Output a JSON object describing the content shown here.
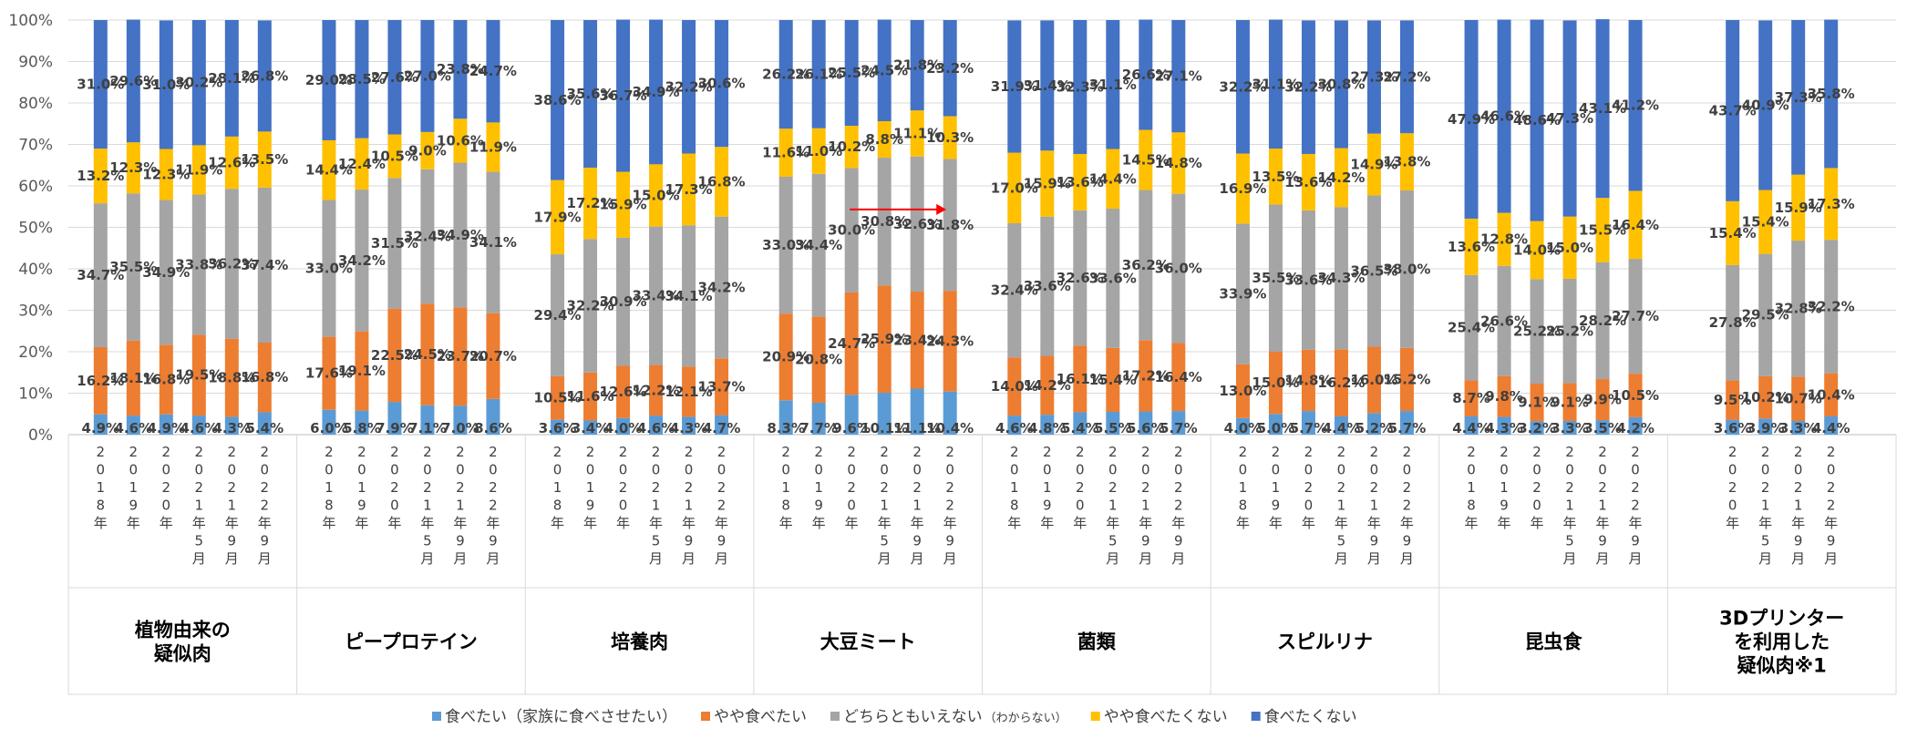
{
  "chart_data": {
    "type": "bar",
    "stacked": true,
    "percent": true,
    "ylim": [
      0,
      100
    ],
    "yticks": [
      "0%",
      "10%",
      "20%",
      "30%",
      "40%",
      "50%",
      "60%",
      "70%",
      "80%",
      "90%",
      "100%"
    ],
    "series": [
      {
        "name": "食べたい（家族に食べさせたい）",
        "color": "#5B9BD5"
      },
      {
        "name": "やや食べたい",
        "color": "#ED7D31"
      },
      {
        "name": "どちらともいえない",
        "name_suffix": "（わからない）",
        "color": "#A5A5A5"
      },
      {
        "name": "やや食べたくない",
        "color": "#FFC000"
      },
      {
        "name": "食べたくない",
        "color": "#4472C4"
      }
    ],
    "groups": [
      {
        "label_lines": [
          "植物由来の",
          "疑似肉"
        ],
        "x": [
          "2018年",
          "2019年",
          "2020年",
          "2021年5月",
          "2021年9月",
          "2022年9月"
        ],
        "values": [
          [
            4.9,
            16.2,
            34.7,
            13.2,
            31.0
          ],
          [
            4.6,
            18.1,
            35.5,
            12.3,
            29.6
          ],
          [
            4.9,
            16.8,
            34.9,
            12.3,
            31.0
          ],
          [
            4.6,
            19.5,
            33.8,
            11.9,
            30.2
          ],
          [
            4.3,
            18.8,
            36.2,
            12.6,
            28.1
          ],
          [
            5.4,
            16.8,
            37.4,
            13.5,
            26.8
          ]
        ]
      },
      {
        "label_lines": [
          "ピープロテイン"
        ],
        "x": [
          "2018年",
          "2019年",
          "2020年",
          "2021年5月",
          "2021年9月",
          "2022年9月"
        ],
        "values": [
          [
            6.0,
            17.6,
            33.0,
            14.4,
            29.0
          ],
          [
            5.8,
            19.1,
            34.2,
            12.4,
            28.5
          ],
          [
            7.9,
            22.5,
            31.5,
            10.5,
            27.6
          ],
          [
            7.1,
            24.5,
            32.4,
            9.0,
            27.0
          ],
          [
            7.0,
            23.7,
            34.9,
            10.6,
            23.8
          ],
          [
            8.6,
            20.7,
            34.1,
            11.9,
            24.7
          ]
        ]
      },
      {
        "label_lines": [
          "培養肉"
        ],
        "x": [
          "2018年",
          "2019年",
          "2020年",
          "2021年5月",
          "2021年9月",
          "2022年9月"
        ],
        "values": [
          [
            3.6,
            10.5,
            29.4,
            17.9,
            38.6
          ],
          [
            3.4,
            11.6,
            32.2,
            17.2,
            35.6
          ],
          [
            4.0,
            12.6,
            30.9,
            15.9,
            36.7
          ],
          [
            4.6,
            12.2,
            33.4,
            15.0,
            34.9
          ],
          [
            4.3,
            12.1,
            34.1,
            17.3,
            32.2
          ],
          [
            4.7,
            13.7,
            34.2,
            16.8,
            30.6
          ]
        ]
      },
      {
        "label_lines": [
          "大豆ミート"
        ],
        "x": [
          "2018年",
          "2019年",
          "2020年",
          "2021年5月",
          "2021年9月",
          "2022年9月"
        ],
        "values": [
          [
            8.3,
            20.9,
            33.0,
            11.6,
            26.2
          ],
          [
            7.7,
            20.8,
            34.4,
            11.0,
            26.1
          ],
          [
            9.6,
            24.7,
            30.0,
            10.2,
            25.5
          ],
          [
            10.1,
            25.9,
            30.8,
            8.8,
            24.5
          ],
          [
            11.1,
            23.4,
            32.6,
            11.1,
            21.8
          ],
          [
            10.4,
            24.3,
            31.8,
            10.3,
            23.2
          ]
        ],
        "annotation": "arrow"
      },
      {
        "label_lines": [
          "菌類"
        ],
        "x": [
          "2018年",
          "2019年",
          "2020年",
          "2021年5月",
          "2021年9月",
          "2022年9月"
        ],
        "values": [
          [
            4.6,
            14.0,
            32.4,
            17.0,
            31.9
          ],
          [
            4.8,
            14.2,
            33.6,
            15.9,
            31.4
          ],
          [
            5.4,
            16.1,
            32.6,
            13.6,
            32.3
          ],
          [
            5.5,
            15.4,
            33.6,
            14.4,
            31.1
          ],
          [
            5.6,
            17.2,
            36.2,
            14.5,
            26.6
          ],
          [
            5.7,
            16.4,
            36.0,
            14.8,
            27.1
          ]
        ]
      },
      {
        "label_lines": [
          "スピルリナ"
        ],
        "x": [
          "2018年",
          "2019年",
          "2020年",
          "2021年5月",
          "2021年9月",
          "2022年9月"
        ],
        "values": [
          [
            4.0,
            13.0,
            33.9,
            16.9,
            32.2
          ],
          [
            5.0,
            15.0,
            35.5,
            13.5,
            31.1
          ],
          [
            5.7,
            14.8,
            33.6,
            13.6,
            32.2
          ],
          [
            4.4,
            16.2,
            34.3,
            14.2,
            30.8
          ],
          [
            5.2,
            16.0,
            36.5,
            14.9,
            27.3
          ],
          [
            5.7,
            15.2,
            38.0,
            13.8,
            27.2
          ]
        ]
      },
      {
        "label_lines": [
          "昆虫食"
        ],
        "x": [
          "2018年",
          "2019年",
          "2020年",
          "2021年5月",
          "2021年9月",
          "2022年9月"
        ],
        "values": [
          [
            4.4,
            8.7,
            25.4,
            13.6,
            47.9
          ],
          [
            4.3,
            9.8,
            26.6,
            12.8,
            46.6
          ],
          [
            3.2,
            9.1,
            25.2,
            14.0,
            48.6
          ],
          [
            3.3,
            9.1,
            25.2,
            15.0,
            47.3
          ],
          [
            3.5,
            9.9,
            28.2,
            15.5,
            43.1
          ],
          [
            4.2,
            10.5,
            27.7,
            16.4,
            41.2
          ]
        ]
      },
      {
        "label_lines": [
          "3Dプリンター",
          "を利用した",
          "疑似肉※1"
        ],
        "x": [
          "2020年",
          "2021年5月",
          "2021年9月",
          "2022年9月"
        ],
        "values": [
          [
            3.6,
            9.5,
            27.8,
            15.4,
            43.7
          ],
          [
            3.9,
            10.2,
            29.5,
            15.4,
            40.9
          ],
          [
            3.3,
            10.7,
            32.8,
            15.9,
            37.3
          ],
          [
            4.4,
            10.4,
            32.2,
            17.3,
            35.8
          ]
        ]
      }
    ]
  }
}
